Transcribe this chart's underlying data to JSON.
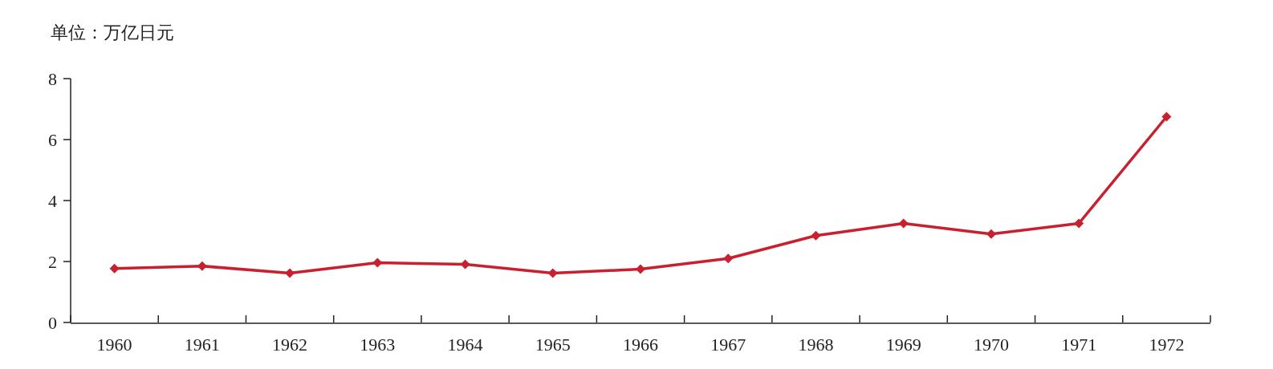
{
  "chart_data": {
    "type": "line",
    "ylabel": "单位：万亿日元",
    "categories": [
      "1960",
      "1961",
      "1962",
      "1963",
      "1964",
      "1965",
      "1966",
      "1967",
      "1968",
      "1969",
      "1970",
      "1971",
      "1972"
    ],
    "series": [
      {
        "color": "#c8202f",
        "values": [
          1.77,
          1.85,
          1.62,
          1.96,
          1.91,
          1.62,
          1.75,
          2.1,
          2.85,
          3.25,
          2.9,
          3.25,
          6.75
        ]
      }
    ],
    "ylim": [
      0,
      8
    ],
    "yticks": [
      0,
      2,
      4,
      6,
      8
    ],
    "marker": "diamond",
    "line_style": "solid"
  }
}
